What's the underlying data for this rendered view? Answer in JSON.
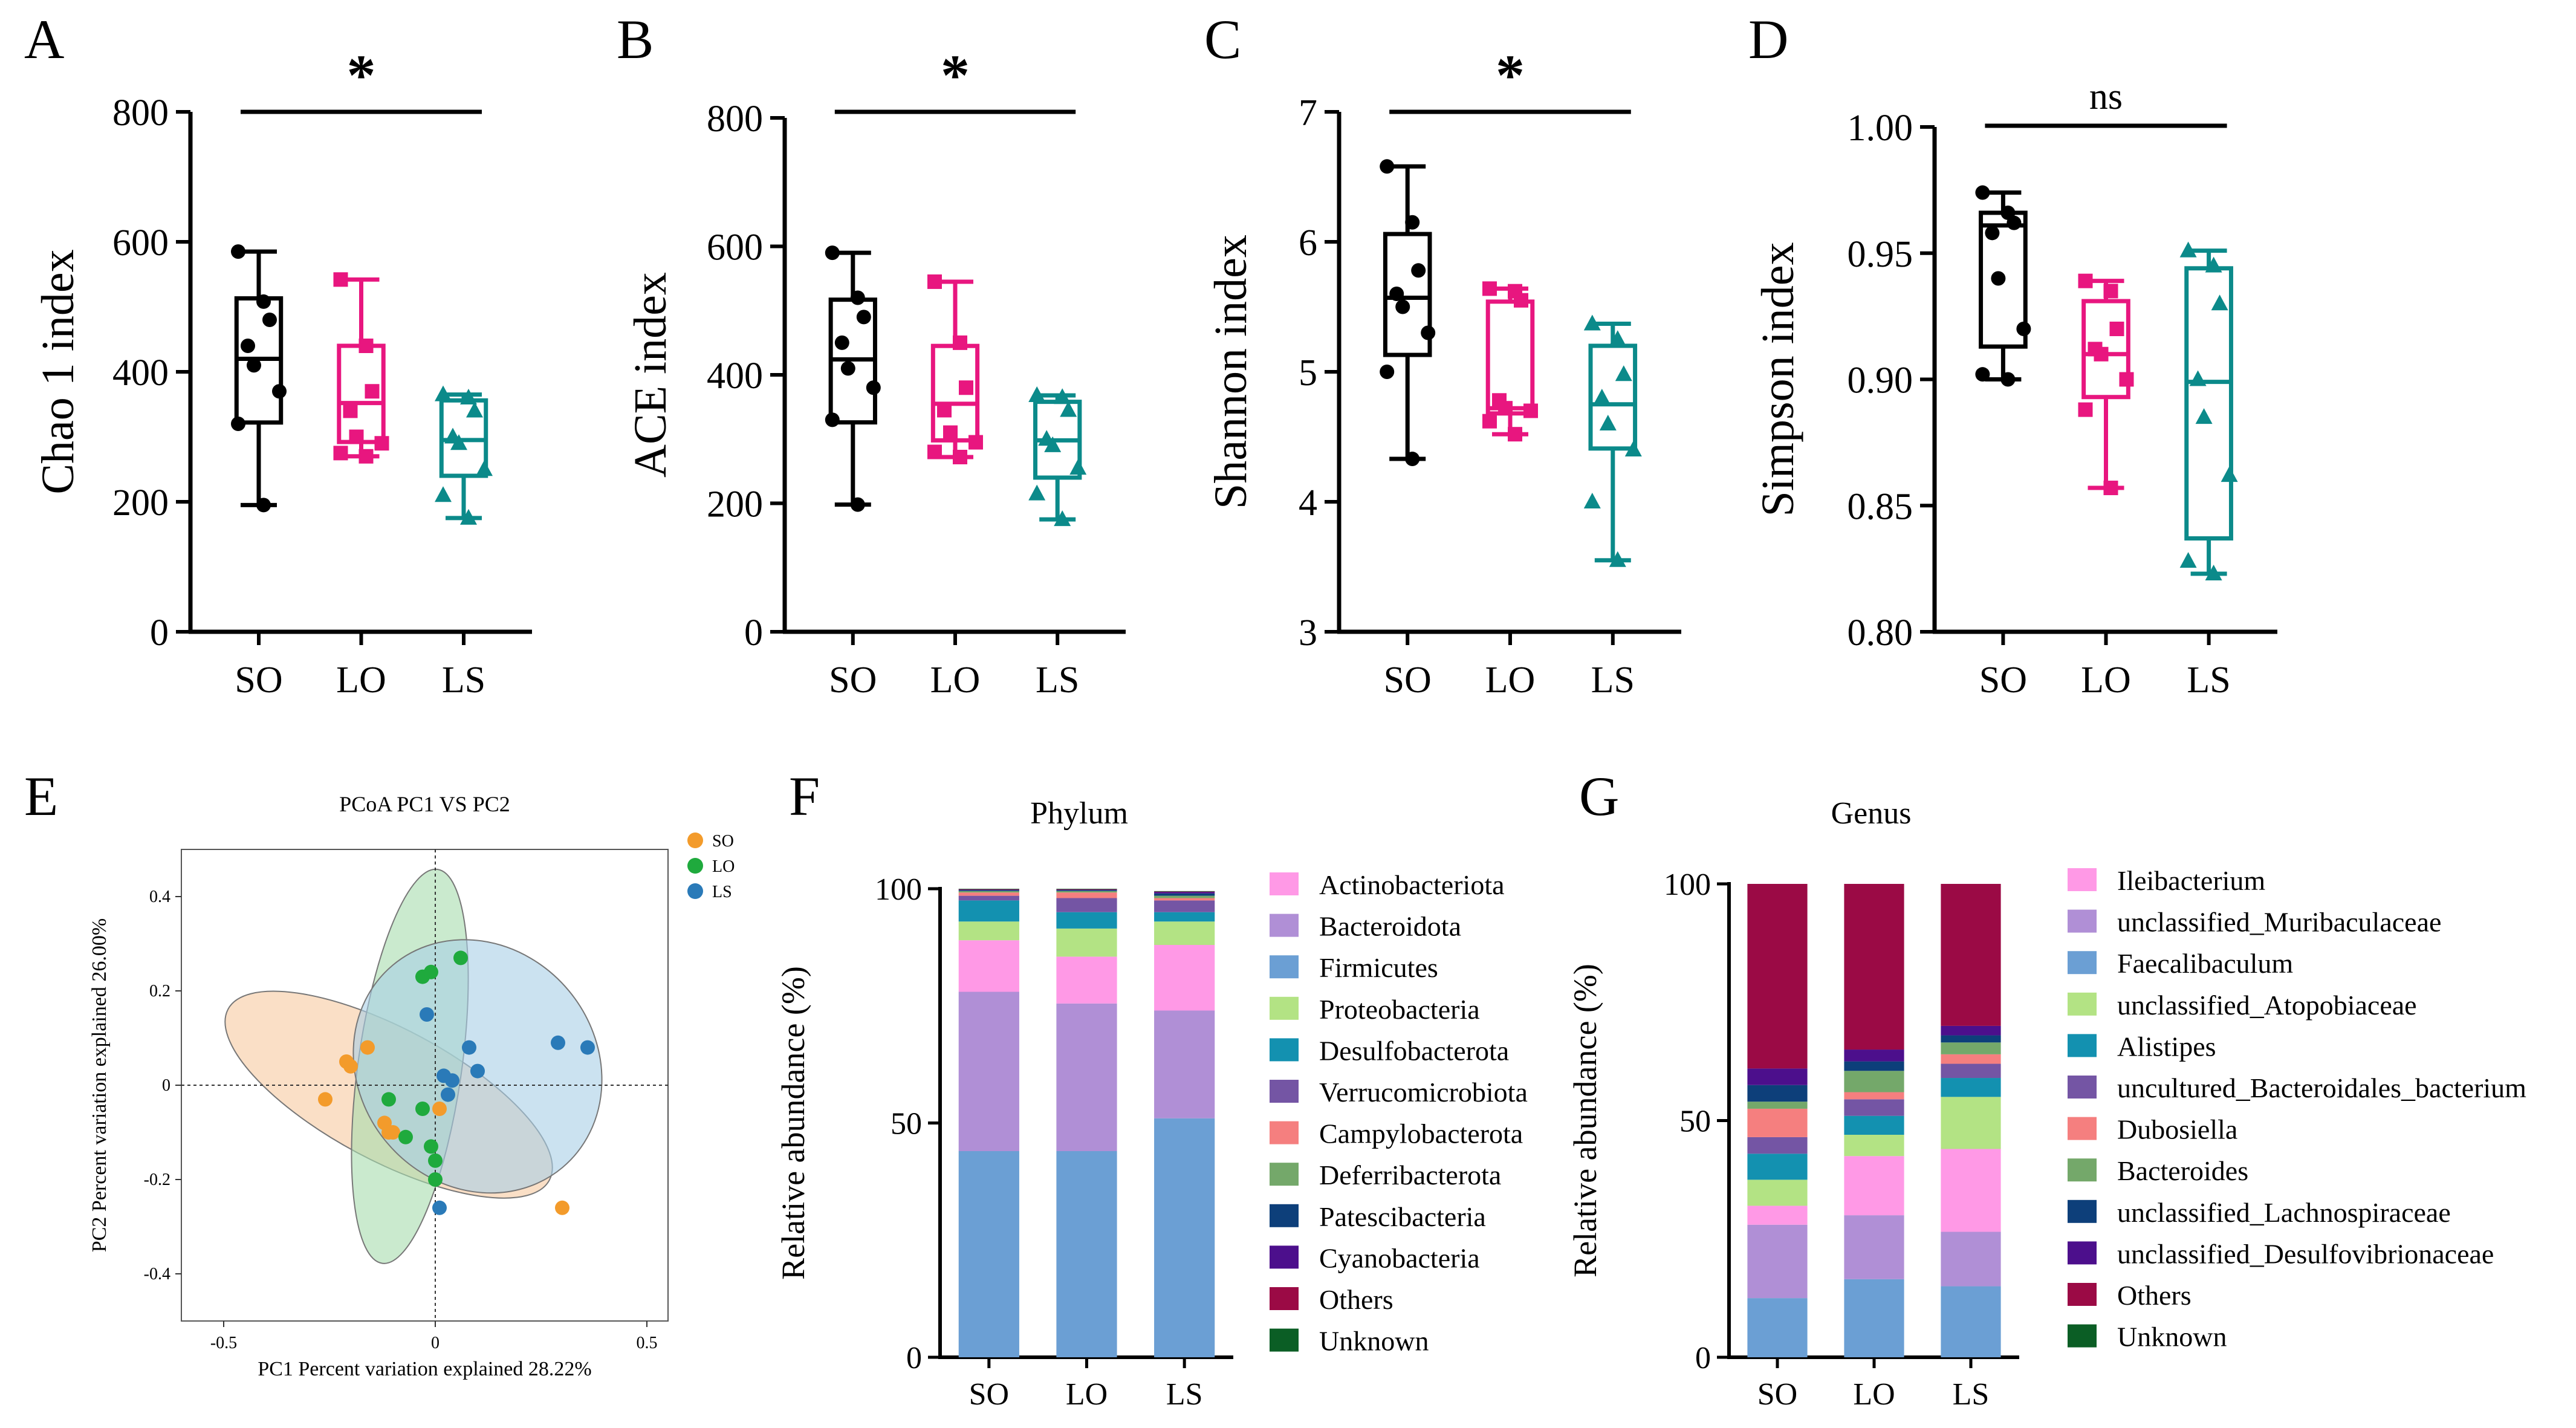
{
  "chart_data": [
    {
      "panel": "A",
      "type": "box",
      "ylabel": "Chao 1 index",
      "ylim": [
        0,
        800
      ],
      "yticks": [
        0,
        200,
        400,
        600,
        800
      ],
      "categories": [
        "SO",
        "LO",
        "LS"
      ],
      "significance": "*",
      "boxes": [
        {
          "group": "SO",
          "min": 195,
          "q1": 322,
          "median": 420,
          "q3": 513,
          "max": 585,
          "points": [
            585,
            508,
            480,
            440,
            410,
            370,
            320,
            195
          ],
          "marker": "circle"
        },
        {
          "group": "LO",
          "min": 270,
          "q1": 292,
          "median": 352,
          "q3": 440,
          "max": 542,
          "points": [
            542,
            440,
            370,
            340,
            300,
            290,
            275,
            270
          ],
          "marker": "square"
        },
        {
          "group": "LS",
          "min": 175,
          "q1": 240,
          "median": 295,
          "q3": 356,
          "max": 365,
          "points": [
            365,
            360,
            340,
            300,
            290,
            250,
            210,
            175
          ],
          "marker": "triangle"
        }
      ]
    },
    {
      "panel": "B",
      "type": "box",
      "ylabel": "ACE index",
      "ylim": [
        0,
        800
      ],
      "yticks": [
        0,
        200,
        400,
        600,
        800
      ],
      "categories": [
        "SO",
        "LO",
        "LS"
      ],
      "significance": "*",
      "boxes": [
        {
          "group": "SO",
          "min": 198,
          "q1": 326,
          "median": 424,
          "q3": 517,
          "max": 590,
          "points": [
            590,
            520,
            490,
            450,
            410,
            380,
            330,
            198
          ],
          "marker": "circle"
        },
        {
          "group": "LO",
          "min": 272,
          "q1": 298,
          "median": 355,
          "q3": 445,
          "max": 545,
          "points": [
            545,
            450,
            380,
            345,
            310,
            295,
            280,
            272
          ],
          "marker": "square"
        },
        {
          "group": "LS",
          "min": 175,
          "q1": 240,
          "median": 298,
          "q3": 358,
          "max": 368,
          "points": [
            368,
            365,
            345,
            300,
            290,
            255,
            215,
            175
          ],
          "marker": "triangle"
        }
      ]
    },
    {
      "panel": "C",
      "type": "box",
      "ylabel": "Shannon index",
      "ylim": [
        3,
        7
      ],
      "yticks": [
        3,
        4,
        5,
        6,
        7
      ],
      "categories": [
        "SO",
        "LO",
        "LS"
      ],
      "significance": "*",
      "boxes": [
        {
          "group": "SO",
          "min": 4.33,
          "q1": 5.13,
          "median": 5.57,
          "q3": 6.06,
          "max": 6.58,
          "points": [
            6.58,
            6.15,
            5.78,
            5.6,
            5.5,
            5.3,
            5.0,
            4.33
          ],
          "marker": "circle"
        },
        {
          "group": "LO",
          "min": 4.52,
          "q1": 4.68,
          "median": 4.72,
          "q3": 5.54,
          "max": 5.64,
          "points": [
            5.64,
            5.62,
            5.55,
            4.78,
            4.72,
            4.7,
            4.62,
            4.52
          ],
          "marker": "square"
        },
        {
          "group": "LS",
          "min": 3.55,
          "q1": 4.41,
          "median": 4.75,
          "q3": 5.2,
          "max": 5.37,
          "points": [
            5.37,
            5.25,
            4.98,
            4.8,
            4.6,
            4.4,
            4.0,
            3.55
          ],
          "marker": "triangle"
        }
      ]
    },
    {
      "panel": "D",
      "type": "box",
      "ylabel": "Simpson index",
      "ylim": [
        0.8,
        1.0
      ],
      "yticks": [
        0.8,
        0.85,
        0.9,
        0.95,
        1.0
      ],
      "yticklabels": [
        "0.80",
        "0.85",
        "0.90",
        "0.95",
        "1.00"
      ],
      "categories": [
        "SO",
        "LO",
        "LS"
      ],
      "significance": "ns",
      "boxes": [
        {
          "group": "SO",
          "min": 0.9,
          "q1": 0.913,
          "median": 0.961,
          "q3": 0.966,
          "max": 0.974,
          "points": [
            0.974,
            0.966,
            0.962,
            0.958,
            0.94,
            0.92,
            0.902,
            0.9
          ],
          "marker": "circle"
        },
        {
          "group": "LO",
          "min": 0.857,
          "q1": 0.893,
          "median": 0.91,
          "q3": 0.931,
          "max": 0.939,
          "points": [
            0.939,
            0.935,
            0.92,
            0.912,
            0.91,
            0.9,
            0.888,
            0.857
          ],
          "marker": "square"
        },
        {
          "group": "LS",
          "min": 0.823,
          "q1": 0.837,
          "median": 0.899,
          "q3": 0.944,
          "max": 0.951,
          "points": [
            0.951,
            0.945,
            0.93,
            0.9,
            0.885,
            0.862,
            0.828,
            0.823
          ],
          "marker": "triangle"
        }
      ]
    },
    {
      "panel": "E",
      "type": "scatter",
      "title": "PCoA PC1 VS PC2",
      "xlabel": "PC1 Percent variation explained 28.22%",
      "ylabel": "PC2 Percent variation explained 26.00%",
      "xlim": [
        -0.6,
        0.55
      ],
      "ylim": [
        -0.5,
        0.5
      ],
      "xticks": [
        -0.5,
        0,
        0.5
      ],
      "xticklabels": [
        "-0.5",
        "0",
        "0.5"
      ],
      "yticks": [
        -0.4,
        -0.2,
        0,
        0.2,
        0.4
      ],
      "yticklabels": [
        "-0.4",
        "-0.2",
        "0",
        "0.2",
        "0.4"
      ],
      "series": [
        {
          "name": "SO",
          "color": "#f39b2b",
          "fill": "#f7c9a0",
          "points": [
            [
              -0.21,
              0.05
            ],
            [
              -0.2,
              0.04
            ],
            [
              -0.16,
              0.08
            ],
            [
              -0.26,
              -0.03
            ],
            [
              -0.12,
              -0.08
            ],
            [
              -0.1,
              -0.1
            ],
            [
              -0.11,
              -0.1
            ],
            [
              0.01,
              -0.05
            ],
            [
              0.3,
              -0.26
            ]
          ]
        },
        {
          "name": "LO",
          "color": "#1faa3d",
          "fill": "#a6dcae",
          "points": [
            [
              -0.03,
              0.23
            ],
            [
              -0.01,
              0.24
            ],
            [
              0.06,
              0.27
            ],
            [
              -0.11,
              -0.03
            ],
            [
              -0.07,
              -0.11
            ],
            [
              -0.03,
              -0.05
            ],
            [
              -0.01,
              -0.13
            ],
            [
              0.0,
              -0.16
            ],
            [
              0.0,
              -0.2
            ]
          ]
        },
        {
          "name": "LS",
          "color": "#2a7ab8",
          "fill": "#a9cfe6",
          "points": [
            [
              -0.02,
              0.15
            ],
            [
              0.08,
              0.08
            ],
            [
              0.29,
              0.09
            ],
            [
              0.36,
              0.08
            ],
            [
              0.02,
              0.02
            ],
            [
              0.04,
              0.01
            ],
            [
              0.1,
              0.03
            ],
            [
              0.03,
              -0.02
            ],
            [
              0.01,
              -0.26
            ]
          ]
        }
      ]
    },
    {
      "panel": "F",
      "type": "stacked_bar",
      "title": "Phylum",
      "ylabel": "Relative abundance (%)",
      "ylim": [
        0,
        100
      ],
      "yticks": [
        0,
        50,
        100
      ],
      "categories": [
        "SO",
        "LO",
        "LS"
      ],
      "series": [
        {
          "name": "Firmicutes",
          "color": "#6b9fd4",
          "values": [
            44,
            44,
            51
          ]
        },
        {
          "name": "Bacteroidota",
          "color": "#b08fd6",
          "values": [
            34,
            31.5,
            23
          ]
        },
        {
          "name": "Actinobacteriota",
          "color": "#ff99e6",
          "values": [
            11,
            10,
            14
          ]
        },
        {
          "name": "Proteobacteria",
          "color": "#b3e384",
          "values": [
            4,
            6,
            5
          ]
        },
        {
          "name": "Desulfobacterota",
          "color": "#1391b0",
          "values": [
            4.5,
            3.5,
            2
          ]
        },
        {
          "name": "Verrucomicrobiota",
          "color": "#7455a4",
          "values": [
            1,
            3,
            2.5
          ]
        },
        {
          "name": "Campylobacterota",
          "color": "#f57f7f",
          "values": [
            0.7,
            1.2,
            0.5
          ]
        },
        {
          "name": "Deferribacterota",
          "color": "#74a86a",
          "values": [
            0.3,
            0.3,
            0.5
          ]
        },
        {
          "name": "Patescibacteria",
          "color": "#0d3f7a",
          "values": [
            0.2,
            0.2,
            0.5
          ]
        },
        {
          "name": "Cyanobacteria",
          "color": "#4c0f8c",
          "values": [
            0.1,
            0.1,
            0.3
          ]
        },
        {
          "name": "Others",
          "color": "#9b0a45",
          "values": [
            0.1,
            0.1,
            0.1
          ]
        },
        {
          "name": "Unknown",
          "color": "#0b5e25",
          "values": [
            0.1,
            0.1,
            0.1
          ]
        }
      ],
      "legend_order": [
        "Actinobacteriota",
        "Bacteroidota",
        "Firmicutes",
        "Proteobacteria",
        "Desulfobacterota",
        "Verrucomicrobiota",
        "Campylobacterota",
        "Deferribacterota",
        "Patescibacteria",
        "Cyanobacteria",
        "Others",
        "Unknown"
      ]
    },
    {
      "panel": "G",
      "type": "stacked_bar",
      "title": "Genus",
      "ylabel": "Relative abundance (%)",
      "ylim": [
        0,
        100
      ],
      "yticks": [
        0,
        50,
        100
      ],
      "categories": [
        "SO",
        "LO",
        "LS"
      ],
      "series": [
        {
          "name": "Faecalibaculum",
          "color": "#6b9fd4",
          "values": [
            12.5,
            16.5,
            15
          ]
        },
        {
          "name": "unclassified_Muribaculaceae",
          "color": "#b08fd6",
          "values": [
            15.5,
            13.5,
            11.5
          ]
        },
        {
          "name": "Ileibacterium",
          "color": "#ff99e6",
          "values": [
            4,
            12.5,
            17.5
          ]
        },
        {
          "name": "unclassified_Atopobiaceae",
          "color": "#b3e384",
          "values": [
            5.5,
            4.5,
            11
          ]
        },
        {
          "name": "Alistipes",
          "color": "#1391b0",
          "values": [
            5.5,
            4,
            4
          ]
        },
        {
          "name": "uncultured_Bacteroidales_bacterium",
          "color": "#7455a4",
          "values": [
            3.5,
            3.5,
            3
          ]
        },
        {
          "name": "Dubosiella",
          "color": "#f57f7f",
          "values": [
            6,
            1.5,
            2
          ]
        },
        {
          "name": "Bacteroides",
          "color": "#74a86a",
          "values": [
            1.5,
            4.5,
            2.5
          ]
        },
        {
          "name": "unclassified_Lachnospiraceae",
          "color": "#0d3f7a",
          "values": [
            3.5,
            2,
            1.5
          ]
        },
        {
          "name": "unclassified_Desulfovibrionaceae",
          "color": "#4c0f8c",
          "values": [
            3.5,
            2.5,
            2
          ]
        },
        {
          "name": "Others",
          "color": "#9b0a45",
          "values": [
            39,
            35,
            30
          ]
        },
        {
          "name": "Unknown",
          "color": "#0b5e25",
          "values": [
            0,
            0,
            0
          ]
        }
      ],
      "legend_order": [
        "Ileibacterium",
        "unclassified_Muribaculaceae",
        "Faecalibaculum",
        "unclassified_Atopobiaceae",
        "Alistipes",
        "uncultured_Bacteroidales_bacterium",
        "Dubosiella",
        "Bacteroides",
        "unclassified_Lachnospiraceae",
        "unclassified_Desulfovibrionaceae",
        "Others",
        "Unknown"
      ]
    }
  ]
}
